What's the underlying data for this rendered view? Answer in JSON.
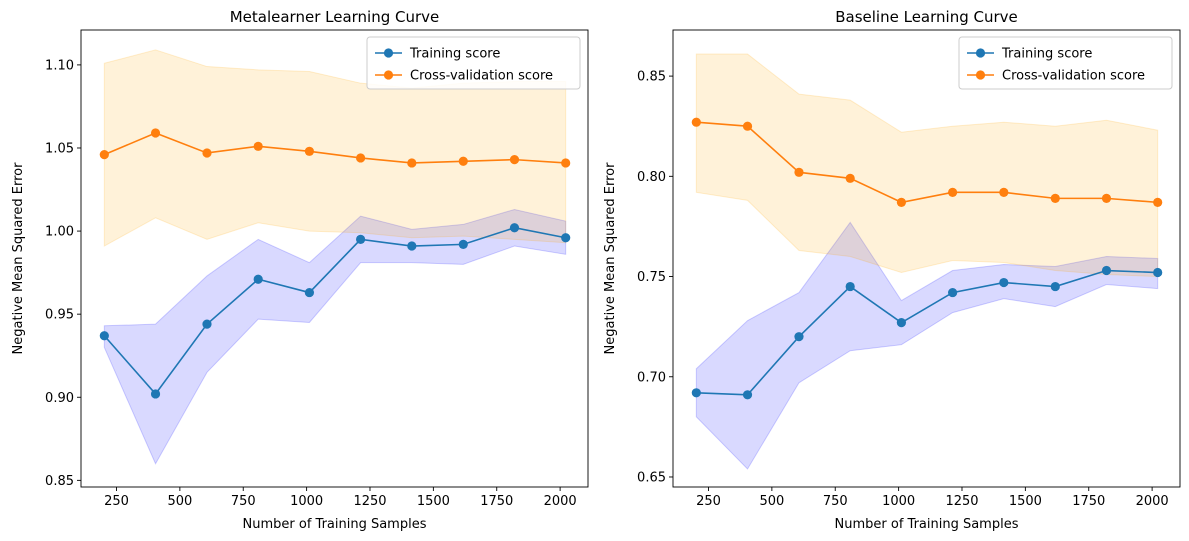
{
  "colors": {
    "training": "#1f77b4",
    "cv": "#ff7f0e",
    "training_band": "#0000ff",
    "cv_band": "#ffa500"
  },
  "chart_data": [
    {
      "type": "line",
      "title": "Metalearner Learning Curve",
      "xlabel": "Number of Training Samples",
      "ylabel": "Negative Mean Squared Error",
      "xlim": [
        110,
        2110
      ],
      "ylim": [
        0.846,
        1.121
      ],
      "xticks": [
        250,
        500,
        750,
        1000,
        1250,
        1500,
        1750,
        2000
      ],
      "yticks": [
        0.85,
        0.9,
        0.95,
        1.0,
        1.05,
        1.1
      ],
      "ytick_decimals": 2,
      "legend": "top-right",
      "grid": false,
      "x": [
        202,
        404,
        607,
        809,
        1011,
        1213,
        1415,
        1618,
        1820,
        2022
      ],
      "series": [
        {
          "name": "Training score",
          "color_key": "training",
          "band_key": "training_band",
          "values": [
            0.937,
            0.902,
            0.944,
            0.971,
            0.963,
            0.995,
            0.991,
            0.992,
            1.002,
            0.996
          ],
          "lower": [
            0.93,
            0.86,
            0.915,
            0.947,
            0.945,
            0.981,
            0.981,
            0.98,
            0.991,
            0.986
          ],
          "upper": [
            0.943,
            0.944,
            0.973,
            0.995,
            0.981,
            1.009,
            1.001,
            1.004,
            1.013,
            1.006
          ]
        },
        {
          "name": "Cross-validation score",
          "color_key": "cv",
          "band_key": "cv_band",
          "values": [
            1.046,
            1.059,
            1.047,
            1.051,
            1.048,
            1.044,
            1.041,
            1.042,
            1.043,
            1.041
          ],
          "lower": [
            0.991,
            1.008,
            0.995,
            1.005,
            1.0,
            0.999,
            0.996,
            0.997,
            0.995,
            0.993
          ],
          "upper": [
            1.101,
            1.109,
            1.099,
            1.097,
            1.096,
            1.089,
            1.086,
            1.089,
            1.09,
            1.09
          ]
        }
      ]
    },
    {
      "type": "line",
      "title": "Baseline Learning Curve",
      "xlabel": "Number of Training Samples",
      "ylabel": "Negative Mean Squared Error",
      "xlim": [
        110,
        2110
      ],
      "ylim": [
        0.645,
        0.873
      ],
      "xticks": [
        250,
        500,
        750,
        1000,
        1250,
        1500,
        1750,
        2000
      ],
      "yticks": [
        0.65,
        0.7,
        0.75,
        0.8,
        0.85
      ],
      "ytick_decimals": 2,
      "legend": "top-right",
      "grid": false,
      "x": [
        202,
        404,
        607,
        809,
        1011,
        1213,
        1415,
        1618,
        1820,
        2022
      ],
      "series": [
        {
          "name": "Training score",
          "color_key": "training",
          "band_key": "training_band",
          "values": [
            0.692,
            0.691,
            0.72,
            0.745,
            0.727,
            0.742,
            0.747,
            0.745,
            0.753,
            0.752
          ],
          "lower": [
            0.68,
            0.654,
            0.697,
            0.713,
            0.716,
            0.732,
            0.739,
            0.735,
            0.746,
            0.744
          ],
          "upper": [
            0.704,
            0.728,
            0.742,
            0.777,
            0.738,
            0.753,
            0.756,
            0.755,
            0.76,
            0.759
          ]
        },
        {
          "name": "Cross-validation score",
          "color_key": "cv",
          "band_key": "cv_band",
          "values": [
            0.827,
            0.825,
            0.802,
            0.799,
            0.787,
            0.792,
            0.792,
            0.789,
            0.789,
            0.787
          ],
          "lower": [
            0.792,
            0.788,
            0.763,
            0.76,
            0.752,
            0.758,
            0.757,
            0.753,
            0.751,
            0.75
          ],
          "upper": [
            0.861,
            0.861,
            0.841,
            0.838,
            0.822,
            0.825,
            0.827,
            0.825,
            0.828,
            0.823
          ]
        }
      ]
    }
  ]
}
